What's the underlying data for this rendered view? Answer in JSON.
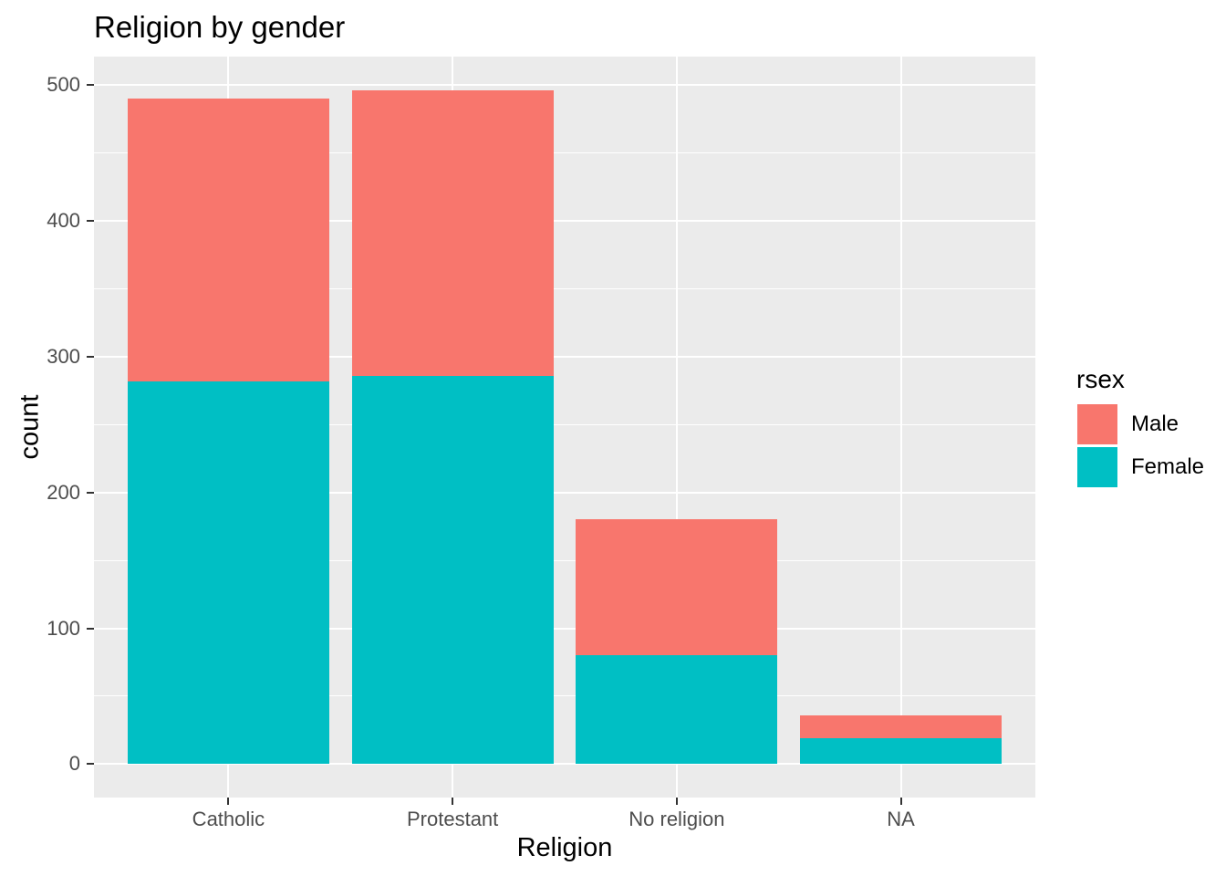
{
  "chart_data": {
    "type": "bar",
    "stacked": true,
    "title": "Religion by gender",
    "xlabel": "Religion",
    "ylabel": "count",
    "categories": [
      "Catholic",
      "Protestant",
      "No religion",
      "NA"
    ],
    "series": [
      {
        "name": "Male",
        "color": "#F8766D",
        "values": [
          208,
          210,
          100,
          17
        ]
      },
      {
        "name": "Female",
        "color": "#00BFC4",
        "values": [
          282,
          286,
          80,
          19
        ]
      }
    ],
    "stack_top_series": "Male",
    "totals": [
      490,
      496,
      180,
      36
    ],
    "ylim": [
      0,
      500
    ],
    "yticks": [
      0,
      100,
      200,
      300,
      400,
      500
    ],
    "yminor": [
      50,
      150,
      250,
      350,
      450
    ],
    "grid": true,
    "legend": {
      "title": "rsex",
      "position": "right",
      "entries": [
        "Male",
        "Female"
      ]
    },
    "colors": {
      "panel_bg": "#EBEBEB",
      "grid": "#FFFFFF",
      "tick_text": "#4D4D4D",
      "tick_mark": "#333333",
      "text": "#000000"
    }
  }
}
